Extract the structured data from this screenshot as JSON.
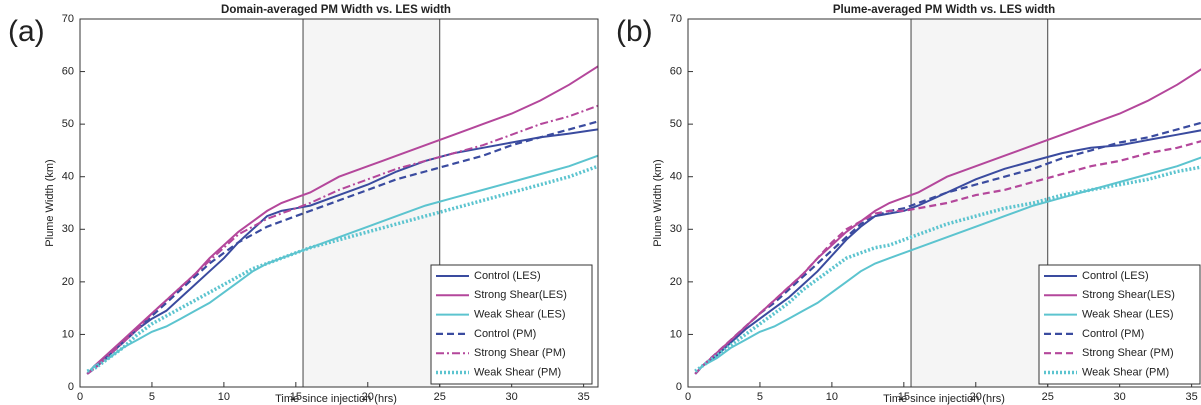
{
  "chart_data": [
    {
      "type": "line",
      "panel_label": "(a)",
      "title": "Domain-averaged PM Width vs. LES width",
      "xlabel": "Time since injection (hrs)",
      "ylabel": "Plume Width (km)",
      "xlim": [
        0,
        36
      ],
      "ylim": [
        0,
        70
      ],
      "xticks": [
        0,
        5,
        10,
        15,
        20,
        25,
        30,
        35
      ],
      "yticks": [
        0,
        10,
        20,
        30,
        40,
        50,
        60,
        70
      ],
      "shaded_region": [
        15.5,
        25
      ],
      "legend": "lower right",
      "x": [
        0.5,
        1,
        2,
        3,
        4,
        5,
        6,
        7,
        8,
        9,
        10,
        11,
        12,
        13,
        14,
        15,
        16,
        18,
        20,
        22,
        24,
        26,
        28,
        30,
        32,
        34,
        36
      ],
      "series": [
        {
          "name": "Control (LES)",
          "color": "#3a4b9f",
          "dash": "solid",
          "values": [
            2.5,
            4,
            6,
            8.5,
            11,
            13,
            14.5,
            17,
            19.5,
            22,
            24.5,
            27.5,
            30,
            32.5,
            33.5,
            34,
            34.5,
            36.5,
            38.5,
            41,
            43,
            44.5,
            45.5,
            46.5,
            47.5,
            48.2,
            49
          ]
        },
        {
          "name": "Strong Shear(LES)",
          "color": "#b4479b",
          "dash": "solid",
          "values": [
            2.5,
            4,
            6.5,
            9,
            11.5,
            14,
            16.5,
            19,
            21.5,
            24.5,
            27,
            29.5,
            31.5,
            33.5,
            35,
            36,
            37,
            40,
            42,
            44,
            46,
            48,
            50,
            52,
            54.5,
            57.5,
            61
          ]
        },
        {
          "name": "Weak Shear (LES)",
          "color": "#5cc4cf",
          "dash": "solid",
          "values": [
            2.5,
            4,
            5.5,
            7.5,
            9,
            10.5,
            11.5,
            13,
            14.5,
            16,
            18,
            20,
            22,
            23.5,
            24.5,
            25.5,
            26.5,
            28.5,
            30.5,
            32.5,
            34.5,
            36,
            37.5,
            39,
            40.5,
            42,
            44
          ]
        },
        {
          "name": "Control (PM)",
          "color": "#3a4b9f",
          "dash": "dashed",
          "values": [
            2.5,
            3.5,
            6,
            8.5,
            11,
            13.5,
            16,
            18.5,
            21,
            23.5,
            25.5,
            27.5,
            29,
            30.5,
            31.5,
            32.5,
            33.5,
            35.5,
            37.5,
            39.5,
            41,
            42.5,
            44,
            46,
            47.5,
            49,
            50.5
          ]
        },
        {
          "name": "Strong Shear (PM)",
          "color": "#b4479b",
          "dash": "dashdot",
          "values": [
            2.5,
            3.5,
            6,
            8.5,
            11,
            14,
            16.5,
            19,
            21.5,
            24,
            26.5,
            29,
            30.5,
            32,
            33,
            34,
            35,
            37.5,
            39.5,
            41.5,
            43,
            44.5,
            46,
            48,
            50,
            51.5,
            53.5
          ]
        },
        {
          "name": "Weak Shear (PM)",
          "color": "#5cc4cf",
          "dash": "dotted",
          "values": [
            3,
            3.5,
            5.5,
            7.5,
            10,
            12,
            13.5,
            15,
            16.5,
            18,
            19.5,
            21,
            22.5,
            23.5,
            24.5,
            25.5,
            26.5,
            28,
            29.5,
            31,
            32.5,
            34,
            35.5,
            37,
            38.5,
            40,
            42
          ]
        }
      ]
    },
    {
      "type": "line",
      "panel_label": "(b)",
      "title": "Plume-averaged PM Width vs. LES width",
      "xlabel": "Time since injection (hrs)",
      "ylabel": "Plume Width (km)",
      "xlim": [
        0,
        36
      ],
      "ylim": [
        0,
        70
      ],
      "xticks": [
        0,
        5,
        10,
        15,
        20,
        25,
        30,
        35
      ],
      "yticks": [
        0,
        10,
        20,
        30,
        40,
        50,
        60,
        70
      ],
      "shaded_region": [
        15.5,
        25
      ],
      "legend": "lower right",
      "x": [
        0.5,
        1,
        2,
        3,
        4,
        5,
        6,
        7,
        8,
        9,
        10,
        11,
        12,
        13,
        14,
        15,
        16,
        18,
        20,
        22,
        24,
        26,
        28,
        30,
        32,
        34,
        36
      ],
      "series": [
        {
          "name": "Control (LES)",
          "color": "#3a4b9f",
          "dash": "solid",
          "values": [
            2.5,
            4,
            6,
            8.5,
            11,
            13,
            15,
            17,
            19.5,
            22,
            25,
            28,
            30.5,
            32.5,
            33,
            33.5,
            34.5,
            37,
            39.5,
            41.5,
            43,
            44.5,
            45.5,
            46,
            47,
            48,
            49
          ]
        },
        {
          "name": "Strong Shear(LES)",
          "color": "#b4479b",
          "dash": "solid",
          "values": [
            2.5,
            4,
            6.5,
            9,
            11.5,
            14,
            16.5,
            19,
            21.5,
            24.5,
            27,
            29.5,
            31.5,
            33.5,
            35,
            36,
            37,
            40,
            42,
            44,
            46,
            48,
            50,
            52,
            54.5,
            57.5,
            61
          ]
        },
        {
          "name": "Weak Shear (LES)",
          "color": "#5cc4cf",
          "dash": "solid",
          "values": [
            2.5,
            4,
            5.5,
            7.5,
            9,
            10.5,
            11.5,
            13,
            14.5,
            16,
            18,
            20,
            22,
            23.5,
            24.5,
            25.5,
            26.5,
            28.5,
            30.5,
            32.5,
            34.5,
            36,
            37.5,
            39,
            40.5,
            42,
            44
          ]
        },
        {
          "name": "Control (PM)",
          "color": "#3a4b9f",
          "dash": "dashed",
          "values": [
            2.5,
            4,
            6.5,
            9,
            11.5,
            14,
            16,
            18.5,
            21,
            23.5,
            26,
            28.5,
            31,
            32.5,
            33.5,
            34,
            35,
            37,
            38.5,
            40,
            41.5,
            43.5,
            45,
            46.5,
            47.5,
            49,
            50.5
          ]
        },
        {
          "name": "Strong Shear (PM)",
          "color": "#b4479b",
          "dash": "dashed",
          "values": [
            2.5,
            4,
            6.5,
            9,
            11.5,
            14,
            16.5,
            19,
            21.5,
            24.5,
            27.5,
            30,
            31.5,
            33,
            33.5,
            33.5,
            34,
            35,
            36.5,
            37.5,
            39,
            40.5,
            42,
            43,
            44.5,
            45.5,
            47
          ]
        },
        {
          "name": "Weak Shear (PM)",
          "color": "#5cc4cf",
          "dash": "dotted",
          "values": [
            3,
            4,
            6,
            8,
            10,
            12,
            14,
            16,
            18.5,
            20.5,
            22.5,
            24.5,
            25.5,
            26.5,
            27,
            28,
            29,
            31,
            32.5,
            34,
            35,
            36.5,
            37.5,
            38.5,
            39.5,
            41,
            42
          ]
        }
      ]
    }
  ]
}
